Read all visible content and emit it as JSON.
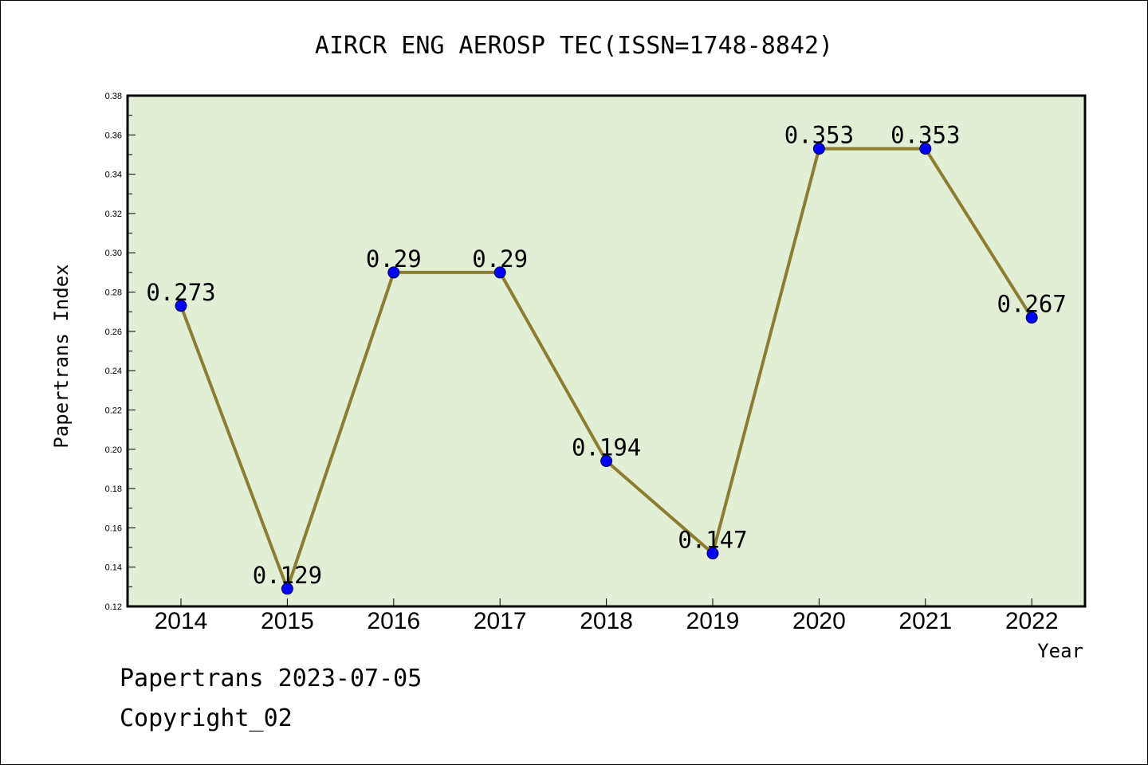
{
  "chart_data": {
    "type": "line",
    "title": "AIRCR ENG AEROSP TEC(ISSN=1748-8842)",
    "xlabel": "Year",
    "ylabel": "Papertrans Index",
    "categories": [
      "2014",
      "2015",
      "2016",
      "2017",
      "2018",
      "2019",
      "2020",
      "2021",
      "2022"
    ],
    "series": [
      {
        "values": [
          0.273,
          0.129,
          0.29,
          0.29,
          0.194,
          0.147,
          0.353,
          0.353,
          0.267
        ],
        "data_labels": [
          "0.273",
          "0.129",
          "0.29",
          "0.29",
          "0.194",
          "0.147",
          "0.353",
          "0.353",
          "0.267"
        ]
      }
    ],
    "ylim": [
      0.12,
      0.38
    ],
    "yticks": [
      "0.12",
      "0.14",
      "0.16",
      "0.18",
      "0.20",
      "0.22",
      "0.24",
      "0.26",
      "0.28",
      "0.30",
      "0.32",
      "0.34",
      "0.36",
      "0.38"
    ],
    "grid": false,
    "legend": "none",
    "colors": {
      "plot_background": "#e2efd4",
      "line": "#8b7d32",
      "marker": "#0000ff",
      "axis": "#000000"
    }
  },
  "footer": {
    "date_text": "Papertrans 2023-07-05",
    "copyright_text": "Copyright_02"
  }
}
